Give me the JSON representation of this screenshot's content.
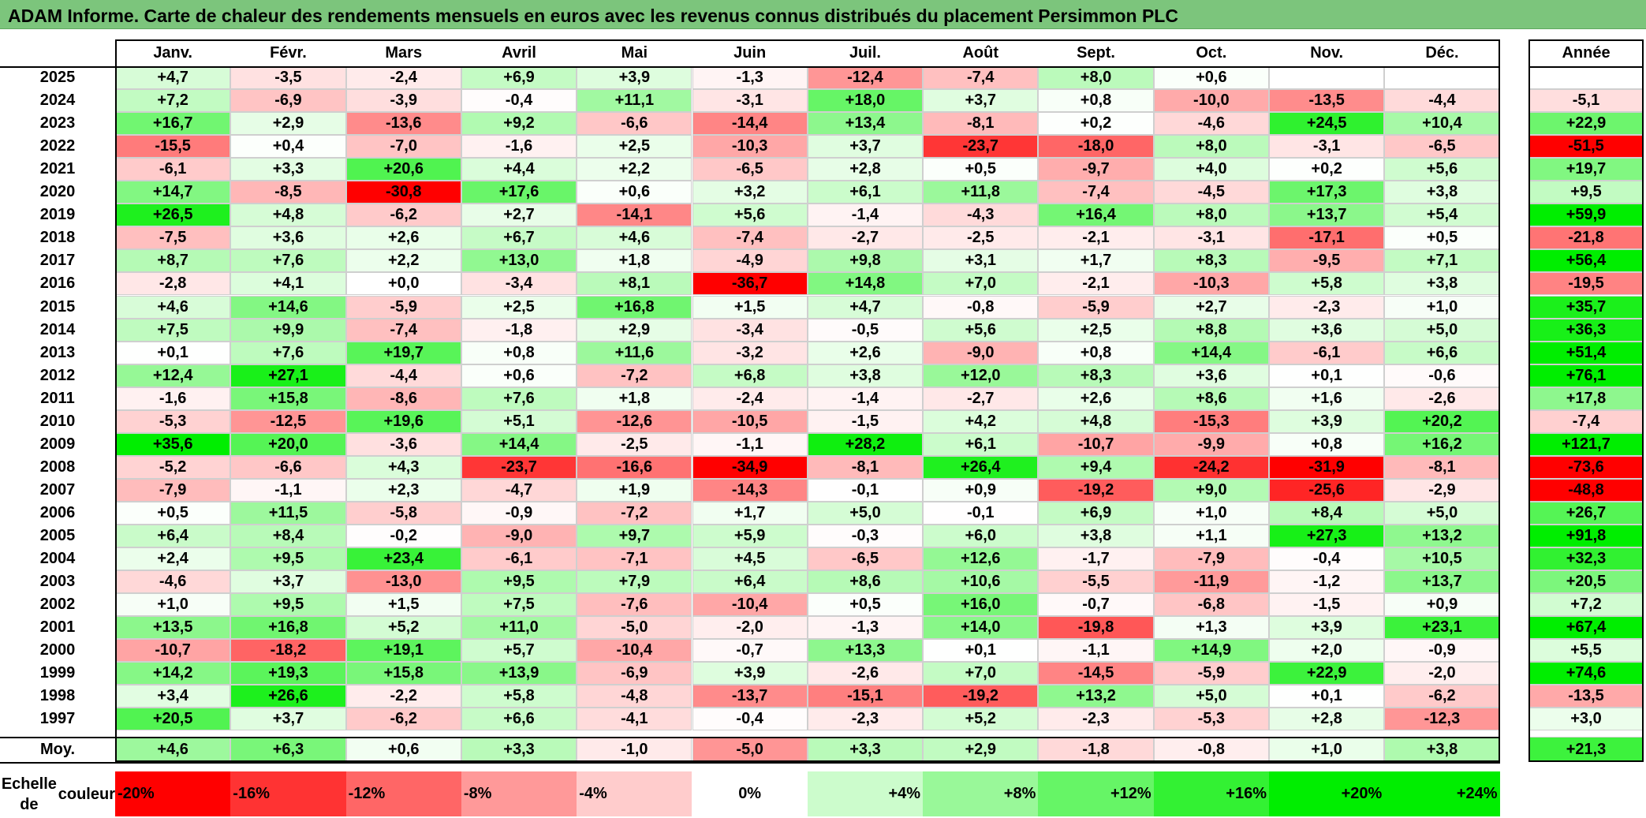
{
  "title": "ADAM Informe. Carte de chaleur des rendements mensuels en euros avec les revenus connus distribués du placement Persimmon PLC",
  "chart_data": {
    "type": "heatmap",
    "title": "ADAM Informe. Carte de chaleur des rendements mensuels en euros avec les revenus connus distribués du placement Persimmon PLC",
    "columns": [
      "Janv.",
      "Févr.",
      "Mars",
      "Avril",
      "Mai",
      "Juin",
      "Juil.",
      "Août",
      "Sept.",
      "Oct.",
      "Nov.",
      "Déc."
    ],
    "year_column": "Année",
    "rows": [
      {
        "year": "2025",
        "values": [
          "+4,7",
          "-3,5",
          "-2,4",
          "+6,9",
          "+3,9",
          "-1,3",
          "-12,4",
          "-7,4",
          "+8,0",
          "+0,6",
          "",
          ""
        ],
        "annual": ""
      },
      {
        "year": "2024",
        "values": [
          "+7,2",
          "-6,9",
          "-3,9",
          "-0,4",
          "+11,1",
          "-3,1",
          "+18,0",
          "+3,7",
          "+0,8",
          "-10,0",
          "-13,5",
          "-4,4"
        ],
        "annual": "-5,1"
      },
      {
        "year": "2023",
        "values": [
          "+16,7",
          "+2,9",
          "-13,6",
          "+9,2",
          "-6,6",
          "-14,4",
          "+13,4",
          "-8,1",
          "+0,2",
          "-4,6",
          "+24,5",
          "+10,4"
        ],
        "annual": "+22,9"
      },
      {
        "year": "2022",
        "values": [
          "-15,5",
          "+0,4",
          "-7,0",
          "-1,6",
          "+2,5",
          "-10,3",
          "+3,7",
          "-23,7",
          "-18,0",
          "+8,0",
          "-3,1",
          "-6,5"
        ],
        "annual": "-51,5"
      },
      {
        "year": "2021",
        "values": [
          "-6,1",
          "+3,3",
          "+20,6",
          "+4,4",
          "+2,2",
          "-6,5",
          "+2,8",
          "+0,5",
          "-9,7",
          "+4,0",
          "+0,2",
          "+5,6"
        ],
        "annual": "+19,7"
      },
      {
        "year": "2020",
        "values": [
          "+14,7",
          "-8,5",
          "-30,8",
          "+17,6",
          "+0,6",
          "+3,2",
          "+6,1",
          "+11,8",
          "-7,4",
          "-4,5",
          "+17,3",
          "+3,8"
        ],
        "annual": "+9,5"
      },
      {
        "year": "2019",
        "values": [
          "+26,5",
          "+4,8",
          "-6,2",
          "+2,7",
          "-14,1",
          "+5,6",
          "-1,4",
          "-4,3",
          "+16,4",
          "+8,0",
          "+13,7",
          "+5,4"
        ],
        "annual": "+59,9"
      },
      {
        "year": "2018",
        "values": [
          "-7,5",
          "+3,6",
          "+2,6",
          "+6,7",
          "+4,6",
          "-7,4",
          "-2,7",
          "-2,5",
          "-2,1",
          "-3,1",
          "-17,1",
          "+0,5"
        ],
        "annual": "-21,8"
      },
      {
        "year": "2017",
        "values": [
          "+8,7",
          "+7,6",
          "+2,2",
          "+13,0",
          "+1,8",
          "-4,9",
          "+9,8",
          "+3,1",
          "+1,7",
          "+8,3",
          "-9,5",
          "+7,1"
        ],
        "annual": "+56,4"
      },
      {
        "year": "2016",
        "values": [
          "-2,8",
          "+4,1",
          "+0,0",
          "-3,4",
          "+8,1",
          "-36,7",
          "+14,8",
          "+7,0",
          "-2,1",
          "-10,3",
          "+5,8",
          "+3,8"
        ],
        "annual": "-19,5"
      },
      {
        "year": "2015",
        "values": [
          "+4,6",
          "+14,6",
          "-5,9",
          "+2,5",
          "+16,8",
          "+1,5",
          "+4,7",
          "-0,8",
          "-5,9",
          "+2,7",
          "-2,3",
          "+1,0"
        ],
        "annual": "+35,7"
      },
      {
        "year": "2014",
        "values": [
          "+7,5",
          "+9,9",
          "-7,4",
          "-1,8",
          "+2,9",
          "-3,4",
          "-0,5",
          "+5,6",
          "+2,5",
          "+8,8",
          "+3,6",
          "+5,0"
        ],
        "annual": "+36,3"
      },
      {
        "year": "2013",
        "values": [
          "+0,1",
          "+7,6",
          "+19,7",
          "+0,8",
          "+11,6",
          "-3,2",
          "+2,6",
          "-9,0",
          "+0,8",
          "+14,4",
          "-6,1",
          "+6,6"
        ],
        "annual": "+51,4"
      },
      {
        "year": "2012",
        "values": [
          "+12,4",
          "+27,1",
          "-4,4",
          "+0,6",
          "-7,2",
          "+6,8",
          "+3,8",
          "+12,0",
          "+8,3",
          "+3,6",
          "+0,1",
          "-0,6"
        ],
        "annual": "+76,1"
      },
      {
        "year": "2011",
        "values": [
          "-1,6",
          "+15,8",
          "-8,6",
          "+7,6",
          "+1,8",
          "-2,4",
          "-1,4",
          "-2,7",
          "+2,6",
          "+8,6",
          "+1,6",
          "-2,6"
        ],
        "annual": "+17,8"
      },
      {
        "year": "2010",
        "values": [
          "-5,3",
          "-12,5",
          "+19,6",
          "+5,1",
          "-12,6",
          "-10,5",
          "-1,5",
          "+4,2",
          "+4,8",
          "-15,3",
          "+3,9",
          "+20,2"
        ],
        "annual": "-7,4"
      },
      {
        "year": "2009",
        "values": [
          "+35,6",
          "+20,0",
          "-3,6",
          "+14,4",
          "-2,5",
          "-1,1",
          "+28,2",
          "+6,1",
          "-10,7",
          "-9,9",
          "+0,8",
          "+16,2"
        ],
        "annual": "+121,7"
      },
      {
        "year": "2008",
        "values": [
          "-5,2",
          "-6,6",
          "+4,3",
          "-23,7",
          "-16,6",
          "-34,9",
          "-8,1",
          "+26,4",
          "+9,4",
          "-24,2",
          "-31,9",
          "-8,1"
        ],
        "annual": "-73,6"
      },
      {
        "year": "2007",
        "values": [
          "-7,9",
          "-1,1",
          "+2,3",
          "-4,7",
          "+1,9",
          "-14,3",
          "-0,1",
          "+0,9",
          "-19,2",
          "+9,0",
          "-25,6",
          "-2,9"
        ],
        "annual": "-48,8"
      },
      {
        "year": "2006",
        "values": [
          "+0,5",
          "+11,5",
          "-5,8",
          "-0,9",
          "-7,2",
          "+1,7",
          "+5,0",
          "-0,1",
          "+6,9",
          "+1,0",
          "+8,4",
          "+5,0"
        ],
        "annual": "+26,7"
      },
      {
        "year": "2005",
        "values": [
          "+6,4",
          "+8,4",
          "-0,2",
          "-9,0",
          "+9,7",
          "+5,9",
          "-0,3",
          "+6,0",
          "+3,8",
          "+1,1",
          "+27,3",
          "+13,2"
        ],
        "annual": "+91,8"
      },
      {
        "year": "2004",
        "values": [
          "+2,4",
          "+9,5",
          "+23,4",
          "-6,1",
          "-7,1",
          "+4,5",
          "-6,5",
          "+12,6",
          "-1,7",
          "-7,9",
          "-0,4",
          "+10,5"
        ],
        "annual": "+32,3"
      },
      {
        "year": "2003",
        "values": [
          "-4,6",
          "+3,7",
          "-13,0",
          "+9,5",
          "+7,9",
          "+6,4",
          "+8,6",
          "+10,6",
          "-5,5",
          "-11,9",
          "-1,2",
          "+13,7"
        ],
        "annual": "+20,5"
      },
      {
        "year": "2002",
        "values": [
          "+1,0",
          "+9,5",
          "+1,5",
          "+7,5",
          "-7,6",
          "-10,4",
          "+0,5",
          "+16,0",
          "-0,7",
          "-6,8",
          "-1,5",
          "+0,9"
        ],
        "annual": "+7,2"
      },
      {
        "year": "2001",
        "values": [
          "+13,5",
          "+16,8",
          "+5,2",
          "+11,0",
          "-5,0",
          "-2,0",
          "-1,3",
          "+14,0",
          "-19,8",
          "+1,3",
          "+3,9",
          "+23,1"
        ],
        "annual": "+67,4"
      },
      {
        "year": "2000",
        "values": [
          "-10,7",
          "-18,2",
          "+19,1",
          "+5,7",
          "-10,4",
          "-0,7",
          "+13,3",
          "+0,1",
          "-1,1",
          "+14,9",
          "+2,0",
          "-0,9"
        ],
        "annual": "+5,5"
      },
      {
        "year": "1999",
        "values": [
          "+14,2",
          "+19,3",
          "+15,8",
          "+13,9",
          "-6,9",
          "+3,9",
          "-2,6",
          "+7,0",
          "-14,5",
          "-5,9",
          "+22,9",
          "-2,0"
        ],
        "annual": "+74,6"
      },
      {
        "year": "1998",
        "values": [
          "+3,4",
          "+26,6",
          "-2,2",
          "+5,8",
          "-4,8",
          "-13,7",
          "-15,1",
          "-19,2",
          "+13,2",
          "+5,0",
          "+0,1",
          "-6,2"
        ],
        "annual": "-13,5"
      },
      {
        "year": "1997",
        "values": [
          "+20,5",
          "+3,7",
          "-6,2",
          "+6,6",
          "-4,1",
          "-0,4",
          "-2,3",
          "+5,2",
          "-2,3",
          "-5,3",
          "+2,8",
          "-12,3"
        ],
        "annual": "+3,0"
      }
    ],
    "average": {
      "label": "Moy.",
      "values": [
        "+4,6",
        "+6,3",
        "+0,6",
        "+3,3",
        "-1,0",
        "-5,0",
        "+3,3",
        "+2,9",
        "-1,8",
        "-0,8",
        "+1,0",
        "+3,8"
      ],
      "annual": "+21,3"
    },
    "scale": {
      "label_line1": "Echelle de",
      "label_line2": "couleur",
      "steps": [
        {
          "label": "-20%",
          "value": -20
        },
        {
          "label": "-16%",
          "value": -16
        },
        {
          "label": "-12%",
          "value": -12
        },
        {
          "label": "-8%",
          "value": -8
        },
        {
          "label": "-4%",
          "value": -4
        },
        {
          "label": "0%",
          "value": 0
        },
        {
          "label": "+4%",
          "value": 4
        },
        {
          "label": "+8%",
          "value": 8
        },
        {
          "label": "+12%",
          "value": 12
        },
        {
          "label": "+16%",
          "value": 16
        },
        {
          "label": "+20%",
          "value": 20
        },
        {
          "label": "+24%",
          "value": 24
        }
      ]
    },
    "colors": {
      "neg_max": "#ff0000",
      "neutral": "#ffffff",
      "pos_max": "#00ee00",
      "title_bar": "#7cc57c"
    }
  }
}
